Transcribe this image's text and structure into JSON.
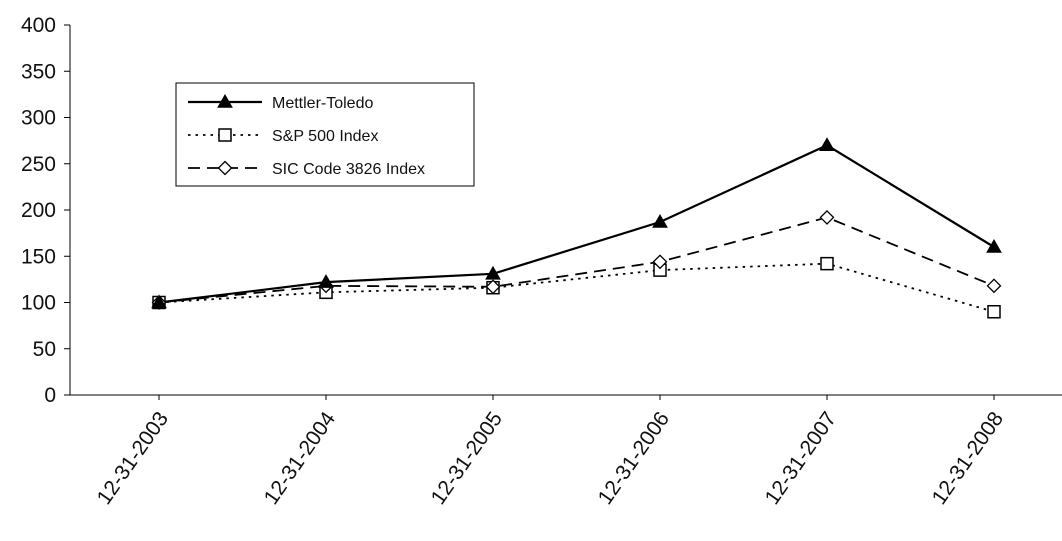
{
  "chart_data": {
    "type": "line",
    "categories": [
      "12-31-2003",
      "12-31-2004",
      "12-31-2005",
      "12-31-2006",
      "12-31-2007",
      "12-31-2008"
    ],
    "ylim": [
      0,
      400
    ],
    "yticks": [
      0,
      50,
      100,
      150,
      200,
      250,
      300,
      350,
      400
    ],
    "grid": false,
    "legend_position": "top-left",
    "series": [
      {
        "name": "Mettler-Toledo",
        "values": [
          100,
          122,
          131,
          187,
          270,
          160
        ],
        "line_style": "solid",
        "marker": "filled-triangle",
        "color": "#000000"
      },
      {
        "name": "S&P 500 Index",
        "values": [
          100,
          111,
          116,
          135,
          142,
          90
        ],
        "line_style": "dotted",
        "marker": "open-square",
        "color": "#000000"
      },
      {
        "name": "SIC Code 3826 Index",
        "values": [
          100,
          118,
          117,
          144,
          192,
          118
        ],
        "line_style": "dashed",
        "marker": "open-diamond",
        "color": "#000000"
      }
    ]
  }
}
